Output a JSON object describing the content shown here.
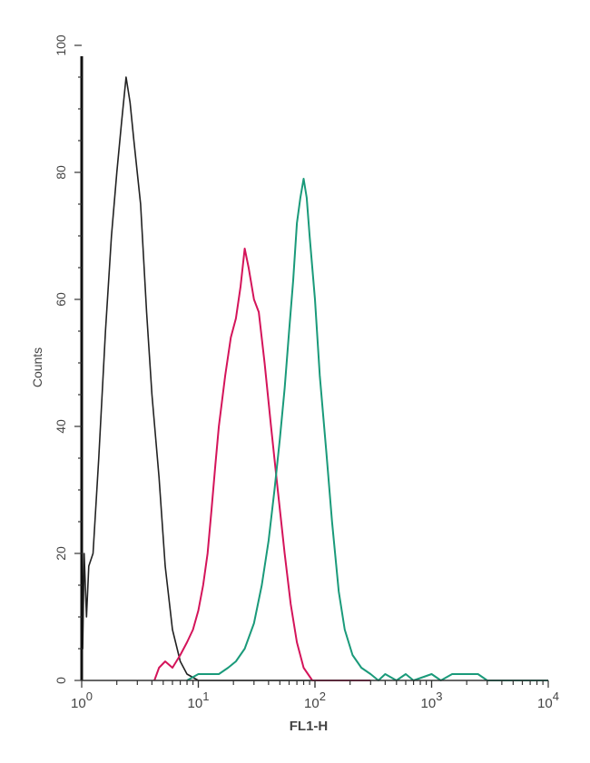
{
  "chart_data": {
    "type": "line",
    "title": "",
    "xlabel": "FL1-H",
    "ylabel": "Counts",
    "xscale": "log",
    "xlim": [
      1,
      10000
    ],
    "ylim": [
      0,
      100
    ],
    "x_ticks": [
      {
        "value": 1,
        "base": "10",
        "exp": "0"
      },
      {
        "value": 10,
        "base": "10",
        "exp": "1"
      },
      {
        "value": 100,
        "base": "10",
        "exp": "2"
      },
      {
        "value": 1000,
        "base": "10",
        "exp": "3"
      },
      {
        "value": 10000,
        "base": "10",
        "exp": "4"
      }
    ],
    "y_ticks": [
      "0",
      "20",
      "40",
      "60",
      "80",
      "100"
    ],
    "grid": false,
    "series": [
      {
        "color": "#222222",
        "points": [
          [
            1.0,
            35
          ],
          [
            1.02,
            5
          ],
          [
            1.05,
            20
          ],
          [
            1.1,
            10
          ],
          [
            1.15,
            18
          ],
          [
            1.25,
            20
          ],
          [
            1.4,
            35
          ],
          [
            1.6,
            55
          ],
          [
            1.8,
            70
          ],
          [
            2.0,
            80
          ],
          [
            2.2,
            88
          ],
          [
            2.4,
            95
          ],
          [
            2.6,
            91
          ],
          [
            2.8,
            85
          ],
          [
            3.2,
            75
          ],
          [
            3.6,
            58
          ],
          [
            4.0,
            45
          ],
          [
            4.6,
            32
          ],
          [
            5.2,
            18
          ],
          [
            6.0,
            8
          ],
          [
            7.0,
            3
          ],
          [
            8.0,
            1
          ],
          [
            10,
            0
          ],
          [
            100,
            0
          ]
        ]
      },
      {
        "color": "#d4145a",
        "points": [
          [
            4.2,
            0
          ],
          [
            4.6,
            2
          ],
          [
            5.2,
            3
          ],
          [
            6,
            2
          ],
          [
            7,
            4
          ],
          [
            8,
            6
          ],
          [
            9,
            8
          ],
          [
            10,
            11
          ],
          [
            11,
            15
          ],
          [
            12,
            20
          ],
          [
            13,
            27
          ],
          [
            14,
            34
          ],
          [
            15,
            40
          ],
          [
            17,
            48
          ],
          [
            19,
            54
          ],
          [
            21,
            57
          ],
          [
            23,
            62
          ],
          [
            25,
            68
          ],
          [
            27,
            65
          ],
          [
            30,
            60
          ],
          [
            33,
            58
          ],
          [
            37,
            50
          ],
          [
            42,
            40
          ],
          [
            48,
            30
          ],
          [
            55,
            20
          ],
          [
            62,
            12
          ],
          [
            70,
            6
          ],
          [
            80,
            2
          ],
          [
            95,
            0
          ],
          [
            300,
            0
          ]
        ]
      },
      {
        "color": "#1a9a7a",
        "points": [
          [
            8,
            0
          ],
          [
            10,
            1
          ],
          [
            12,
            1
          ],
          [
            15,
            1
          ],
          [
            18,
            2
          ],
          [
            21,
            3
          ],
          [
            25,
            5
          ],
          [
            30,
            9
          ],
          [
            35,
            15
          ],
          [
            40,
            22
          ],
          [
            45,
            30
          ],
          [
            50,
            38
          ],
          [
            55,
            46
          ],
          [
            60,
            55
          ],
          [
            65,
            63
          ],
          [
            70,
            72
          ],
          [
            75,
            76
          ],
          [
            80,
            79
          ],
          [
            85,
            76
          ],
          [
            90,
            70
          ],
          [
            100,
            60
          ],
          [
            110,
            48
          ],
          [
            125,
            36
          ],
          [
            140,
            25
          ],
          [
            160,
            14
          ],
          [
            180,
            8
          ],
          [
            210,
            4
          ],
          [
            250,
            2
          ],
          [
            300,
            1
          ],
          [
            350,
            0
          ],
          [
            400,
            1
          ],
          [
            500,
            0
          ],
          [
            600,
            1
          ],
          [
            700,
            0
          ],
          [
            1000,
            1
          ],
          [
            1200,
            0
          ],
          [
            1500,
            1
          ],
          [
            2000,
            1
          ],
          [
            2500,
            1
          ],
          [
            3000,
            0
          ],
          [
            10000,
            0
          ]
        ]
      }
    ]
  }
}
